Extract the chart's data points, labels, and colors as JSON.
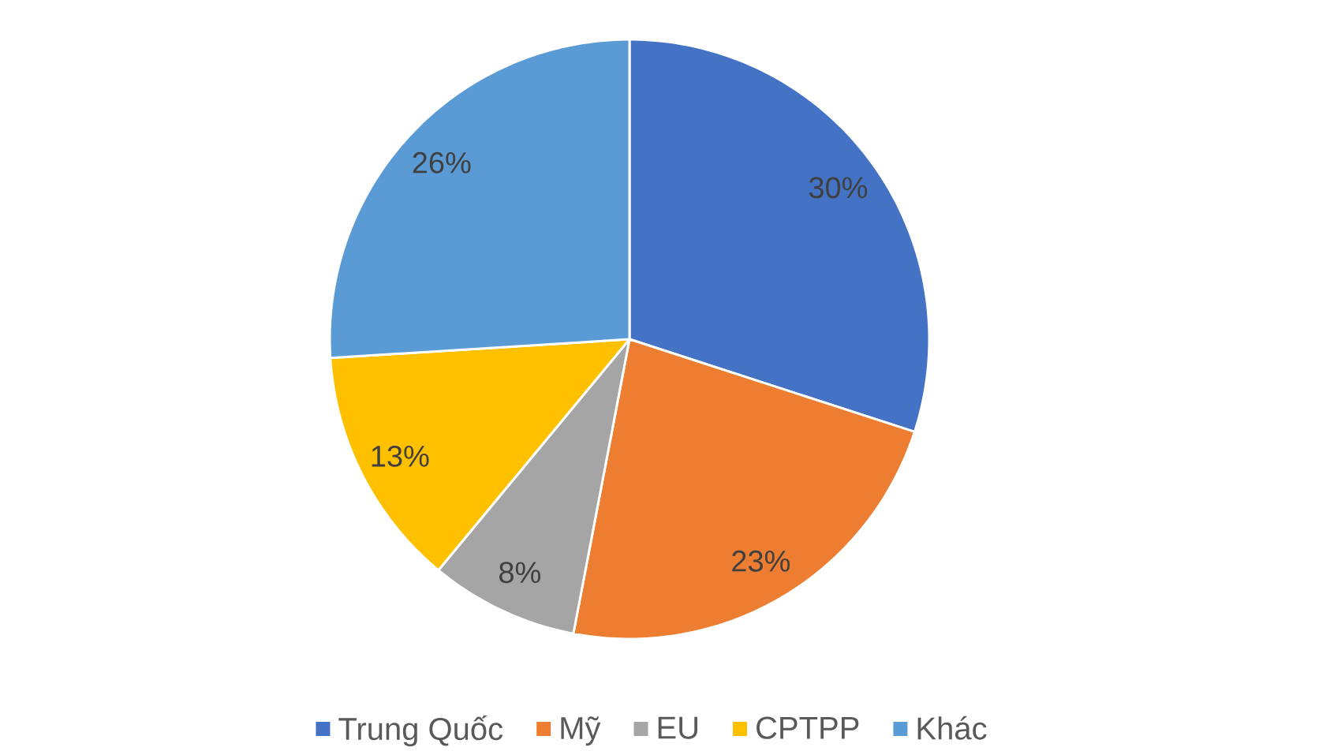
{
  "chart_data": {
    "type": "pie",
    "categories": [
      "Trung Quốc",
      "Mỹ",
      "EU",
      "CPTPP",
      "Khác"
    ],
    "values": [
      30,
      23,
      8,
      13,
      26
    ],
    "colors": [
      "#4472c4",
      "#ed7d31",
      "#a5a5a5",
      "#ffc000",
      "#5b9bd5"
    ],
    "value_labels": [
      "30%",
      "23%",
      "8%",
      "13%",
      "26%"
    ],
    "legend": "bottom"
  }
}
